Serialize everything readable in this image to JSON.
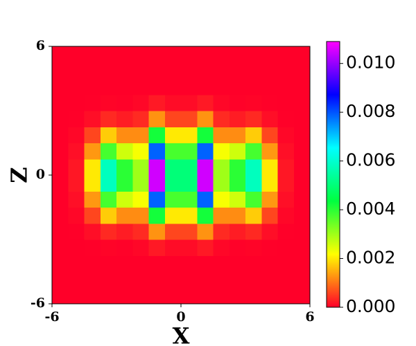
{
  "chart_data": {
    "type": "heatmap",
    "xlabel": "X",
    "ylabel": "Z",
    "x": [
      -5.625,
      -4.875,
      -4.125,
      -3.375,
      -2.625,
      -1.875,
      -1.125,
      -0.375,
      0.375,
      1.125,
      1.875,
      2.625,
      3.375,
      4.125,
      4.875,
      5.625
    ],
    "y": [
      -5.625,
      -4.875,
      -4.125,
      -3.375,
      -2.625,
      -1.875,
      -1.125,
      -0.375,
      0.375,
      1.125,
      1.875,
      2.625,
      3.375,
      4.125,
      4.875,
      5.625
    ],
    "values": [
      [
        0,
        0,
        0,
        0,
        0,
        0,
        0,
        0,
        0,
        0,
        0,
        0,
        0,
        0,
        0,
        0
      ],
      [
        0,
        0,
        0,
        0,
        0,
        0,
        0,
        0,
        0,
        0,
        0,
        0,
        0,
        0,
        0,
        0
      ],
      [
        0,
        0,
        0,
        0,
        0,
        0,
        0,
        0,
        0,
        0,
        0,
        0,
        0,
        0,
        0,
        0
      ],
      [
        0,
        0,
        1e-05,
        3e-05,
        2e-05,
        6e-05,
        0.00021,
        0.0001,
        0.0001,
        0.00021,
        6e-05,
        2e-05,
        3e-05,
        1e-05,
        0,
        0
      ],
      [
        0,
        1e-05,
        0.00012,
        0.00035,
        0.00024,
        0.00036,
        0.00126,
        0.0006,
        0.0006,
        0.00126,
        0.00036,
        0.00024,
        0.00035,
        0.00012,
        1e-05,
        0
      ],
      [
        0,
        6e-05,
        0.0006,
        0.00174,
        0.0012,
        0.0012,
        0.0042,
        0.002,
        0.002,
        0.0042,
        0.0012,
        0.0012,
        0.00174,
        0.0006,
        6e-05,
        0
      ],
      [
        0,
        0.00013,
        0.0013,
        0.00377,
        0.0026,
        0.00225,
        0.00788,
        0.00375,
        0.00375,
        0.00788,
        0.00225,
        0.0026,
        0.00377,
        0.0013,
        0.00013,
        0
      ],
      [
        0,
        0.0002,
        0.002,
        0.0058,
        0.004,
        0.003,
        0.0105,
        0.005,
        0.005,
        0.0105,
        0.003,
        0.004,
        0.0058,
        0.002,
        0.0002,
        0
      ],
      [
        0,
        0.0002,
        0.002,
        0.0058,
        0.004,
        0.003,
        0.0105,
        0.005,
        0.005,
        0.0105,
        0.003,
        0.004,
        0.0058,
        0.002,
        0.0002,
        0
      ],
      [
        0,
        0.00013,
        0.0013,
        0.00377,
        0.0026,
        0.00225,
        0.00788,
        0.00375,
        0.00375,
        0.00788,
        0.00225,
        0.0026,
        0.00377,
        0.0013,
        0.00013,
        0
      ],
      [
        0,
        6e-05,
        0.0006,
        0.00174,
        0.0012,
        0.0012,
        0.0042,
        0.002,
        0.002,
        0.0042,
        0.0012,
        0.0012,
        0.00174,
        0.0006,
        6e-05,
        0
      ],
      [
        0,
        1e-05,
        0.00012,
        0.00035,
        0.00024,
        0.00036,
        0.00126,
        0.0006,
        0.0006,
        0.00126,
        0.00036,
        0.00024,
        0.00035,
        0.00012,
        1e-05,
        0
      ],
      [
        0,
        0,
        1e-05,
        3e-05,
        2e-05,
        6e-05,
        0.00021,
        0.0001,
        0.0001,
        0.00021,
        6e-05,
        2e-05,
        3e-05,
        1e-05,
        0,
        0
      ],
      [
        0,
        0,
        0,
        0,
        0,
        0,
        0,
        0,
        0,
        0,
        0,
        0,
        0,
        0,
        0,
        0
      ],
      [
        0,
        0,
        0,
        0,
        0,
        0,
        0,
        0,
        0,
        0,
        0,
        0,
        0,
        0,
        0,
        0
      ],
      [
        0,
        0,
        0,
        0,
        0,
        0,
        0,
        0,
        0,
        0,
        0,
        0,
        0,
        0,
        0,
        0
      ]
    ],
    "xlim": [
      -6,
      6
    ],
    "ylim": [
      -6,
      6
    ],
    "xticks": [
      -6,
      0,
      6
    ],
    "yticks": [
      -6,
      0,
      6
    ],
    "zlim": [
      0,
      0.0109
    ],
    "colormap": [
      "#ff0029",
      "#ffff00",
      "#00ff40",
      "#00ffff",
      "#0000ff",
      "#ff00ff"
    ],
    "zticks": [
      {
        "value": 0,
        "label": "0.000"
      },
      {
        "value": 0.002,
        "label": "0.002"
      },
      {
        "value": 0.004,
        "label": "0.004"
      },
      {
        "value": 0.006,
        "label": "0.006"
      },
      {
        "value": 0.008,
        "label": "0.008"
      },
      {
        "value": 0.01,
        "label": "0.010"
      }
    ]
  }
}
